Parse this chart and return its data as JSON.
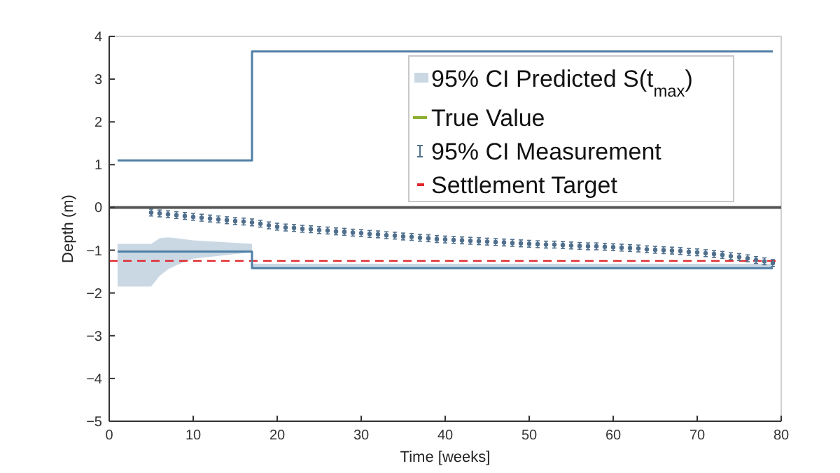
{
  "chart_data": {
    "type": "step",
    "xlabel": "Time [weeks]",
    "ylabel": "Depth (m)",
    "xlim": [
      0,
      80
    ],
    "ylim": [
      -5,
      4
    ],
    "xticks": [
      0,
      10,
      20,
      30,
      40,
      50,
      60,
      70,
      80
    ],
    "yticks": [
      -5,
      -4,
      -3,
      -2,
      -1,
      0,
      1,
      2,
      3,
      4
    ],
    "grid": false,
    "legend": "top right",
    "series": [
      {
        "name": "95% CI Predicted S(t$_{max}$)",
        "color": "#4f7fa6",
        "x": [
          1,
          5,
          6,
          7,
          8,
          10,
          17,
          17,
          79
        ],
        "values": [
          -1.03,
          -1.03,
          -1.03,
          -1.03,
          -1.03,
          -1.03,
          -1.03,
          -1.42,
          -1.42
        ],
        "lower": [
          -1.85,
          -1.85,
          -1.6,
          -1.45,
          -1.35,
          -1.2,
          -1.05,
          -1.45,
          -1.45
        ],
        "upper": [
          -0.85,
          -0.85,
          -0.72,
          -0.7,
          -0.72,
          -0.77,
          -0.85,
          -1.32,
          -1.32
        ]
      },
      {
        "color": "#4f7fa6",
        "x": [
          1,
          17,
          79
        ],
        "values": [
          1.1,
          3.65,
          3.65
        ]
      },
      {
        "name": "True Value",
        "type": "line",
        "color": "#8db032"
      },
      {
        "name": "95% CI Measurement",
        "type": "scatter",
        "color": "#4f6f8c",
        "marker": "circle",
        "x": [
          5,
          6,
          7,
          8,
          9,
          10,
          11,
          12,
          13,
          14,
          15,
          16,
          17,
          18,
          19,
          20,
          21,
          22,
          23,
          24,
          25,
          26,
          27,
          28,
          29,
          30,
          31,
          32,
          33,
          34,
          35,
          36,
          37,
          38,
          39,
          40,
          41,
          42,
          43,
          44,
          45,
          46,
          47,
          48,
          49,
          50,
          51,
          52,
          53,
          54,
          55,
          56,
          57,
          58,
          59,
          60,
          61,
          62,
          63,
          64,
          65,
          66,
          67,
          68,
          69,
          70,
          71,
          72,
          73,
          74,
          75,
          76,
          77,
          78,
          79
        ],
        "values": [
          -0.12,
          -0.14,
          -0.16,
          -0.18,
          -0.2,
          -0.22,
          -0.24,
          -0.26,
          -0.28,
          -0.3,
          -0.32,
          -0.33,
          -0.35,
          -0.38,
          -0.42,
          -0.45,
          -0.47,
          -0.48,
          -0.5,
          -0.51,
          -0.53,
          -0.54,
          -0.56,
          -0.57,
          -0.59,
          -0.6,
          -0.62,
          -0.63,
          -0.65,
          -0.66,
          -0.68,
          -0.69,
          -0.71,
          -0.72,
          -0.74,
          -0.75,
          -0.76,
          -0.77,
          -0.78,
          -0.79,
          -0.8,
          -0.81,
          -0.82,
          -0.83,
          -0.84,
          -0.85,
          -0.86,
          -0.87,
          -0.87,
          -0.88,
          -0.89,
          -0.9,
          -0.91,
          -0.91,
          -0.92,
          -0.93,
          -0.94,
          -0.95,
          -0.96,
          -0.98,
          -0.99,
          -1,
          -1.01,
          -1.02,
          -1.04,
          -1.05,
          -1.07,
          -1.09,
          -1.11,
          -1.14,
          -1.16,
          -1.19,
          -1.23,
          -1.26,
          -1.3
        ],
        "errors": [
          0.08,
          0.08,
          0.08,
          0.08,
          0.08,
          0.08,
          0.08,
          0.08,
          0.08,
          0.08,
          0.08,
          0.08,
          0.08,
          0.08,
          0.08,
          0.08,
          0.08,
          0.08,
          0.08,
          0.08,
          0.08,
          0.08,
          0.08,
          0.08,
          0.08,
          0.08,
          0.08,
          0.08,
          0.08,
          0.08,
          0.08,
          0.08,
          0.08,
          0.08,
          0.08,
          0.08,
          0.08,
          0.08,
          0.08,
          0.08,
          0.08,
          0.08,
          0.08,
          0.08,
          0.08,
          0.08,
          0.08,
          0.08,
          0.08,
          0.08,
          0.08,
          0.08,
          0.08,
          0.08,
          0.08,
          0.08,
          0.08,
          0.08,
          0.08,
          0.08,
          0.08,
          0.08,
          0.08,
          0.08,
          0.08,
          0.08,
          0.08,
          0.08,
          0.08,
          0.08,
          0.08,
          0.08,
          0.08,
          0.08,
          0.08
        ]
      }
    ],
    "ref_lines": [
      {
        "axis": "y",
        "value": 0,
        "color": "#555555",
        "line_style": "solid"
      },
      {
        "axis": "y",
        "value": -1.25,
        "label": "Settlement Target",
        "color": "#e0262b",
        "line_style": "dashed"
      }
    ]
  }
}
